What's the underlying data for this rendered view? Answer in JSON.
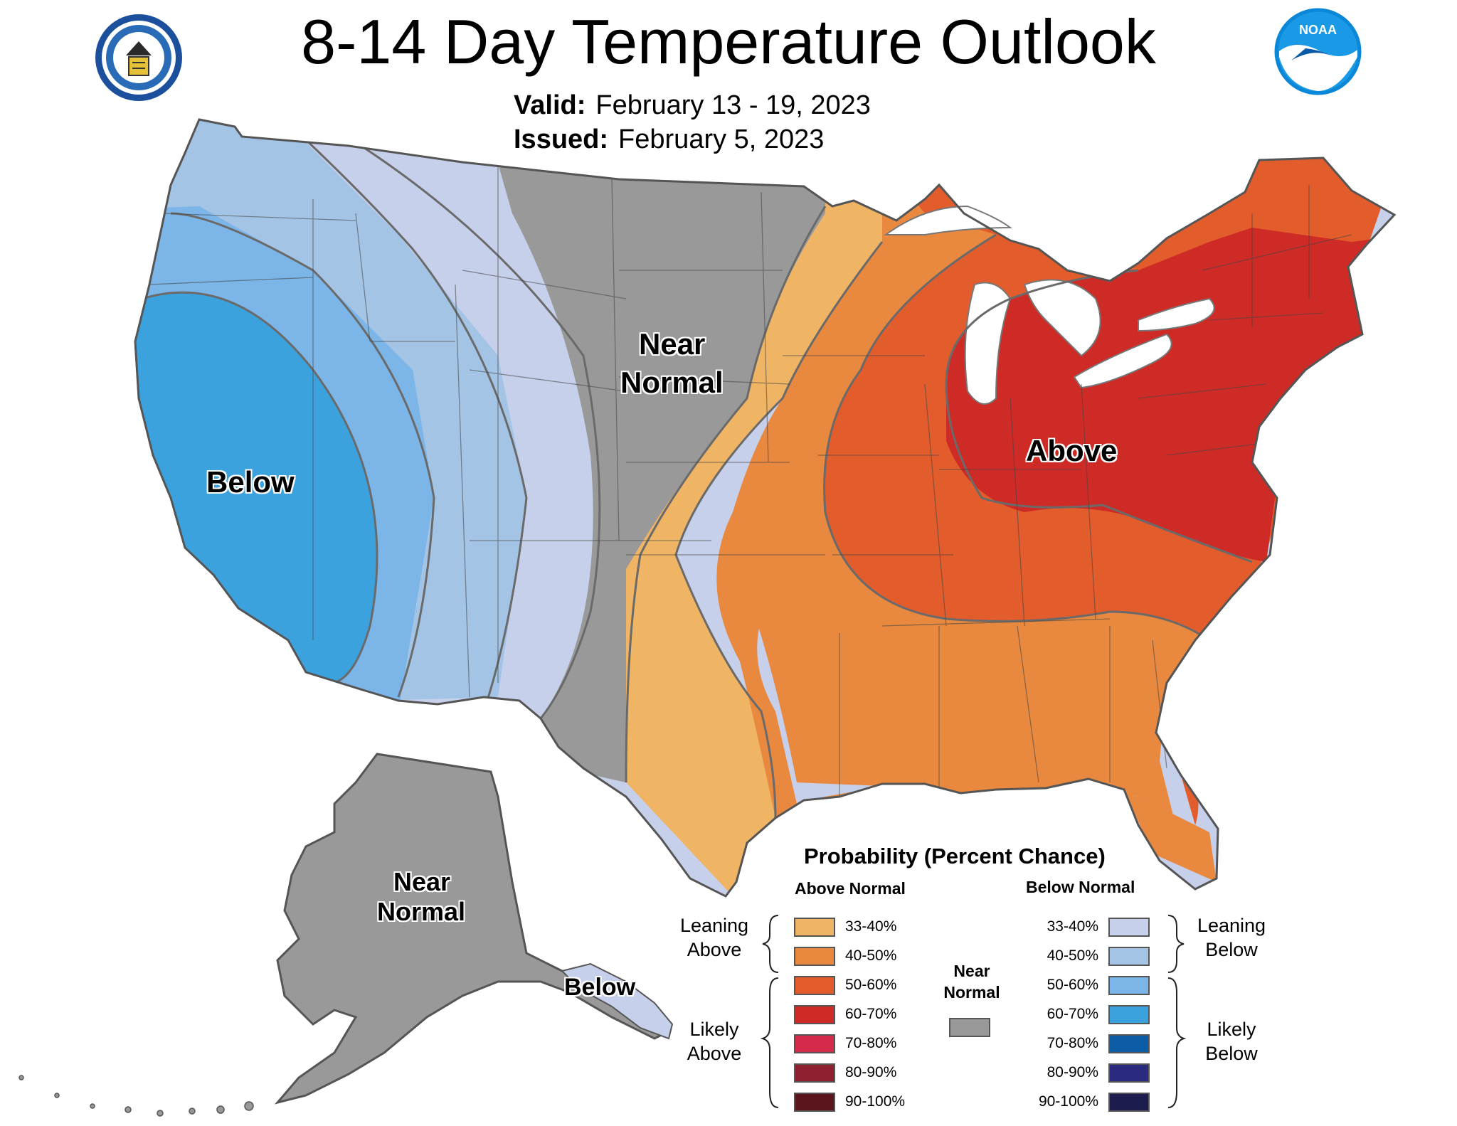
{
  "title": "8-14 Day Temperature Outlook",
  "valid_label": "Valid:",
  "valid_dates": "February 13 - 19, 2023",
  "issued_label": "Issued:",
  "issued_date": "February 5, 2023",
  "logos": {
    "left": "dept-of-commerce-seal",
    "right": "noaa-logo"
  },
  "region_labels": {
    "below_west": "Below",
    "near_normal_plains_1": "Near",
    "near_normal_plains_2": "Normal",
    "above_east": "Above",
    "near_normal_alaska_1": "Near",
    "near_normal_alaska_2": "Normal",
    "below_alaska": "Below"
  },
  "legend": {
    "title": "Probability (Percent Chance)",
    "above_header": "Above Normal",
    "below_header": "Below Normal",
    "leaning_above": [
      "Leaning",
      "Above"
    ],
    "likely_above": [
      "Likely",
      "Above"
    ],
    "leaning_below": [
      "Leaning",
      "Below"
    ],
    "likely_below": [
      "Likely",
      "Below"
    ],
    "near_normal": [
      "Near",
      "Normal"
    ],
    "near_color": "#999999",
    "above": [
      {
        "range": "33-40%",
        "color": "#f0b465"
      },
      {
        "range": "40-50%",
        "color": "#e8893f"
      },
      {
        "range": "50-60%",
        "color": "#e35c2b"
      },
      {
        "range": "60-70%",
        "color": "#cf2b26"
      },
      {
        "range": "70-80%",
        "color": "#d42b4a"
      },
      {
        "range": "80-90%",
        "color": "#8f2030"
      },
      {
        "range": "90-100%",
        "color": "#5c151c"
      }
    ],
    "below": [
      {
        "range": "33-40%",
        "color": "#c7d0ea"
      },
      {
        "range": "40-50%",
        "color": "#a4c4e6"
      },
      {
        "range": "50-60%",
        "color": "#7cb5e8"
      },
      {
        "range": "60-70%",
        "color": "#3ca2de"
      },
      {
        "range": "70-80%",
        "color": "#0c5ca6"
      },
      {
        "range": "80-90%",
        "color": "#2a2a7e"
      },
      {
        "range": "90-100%",
        "color": "#1c1c4e"
      }
    ]
  }
}
